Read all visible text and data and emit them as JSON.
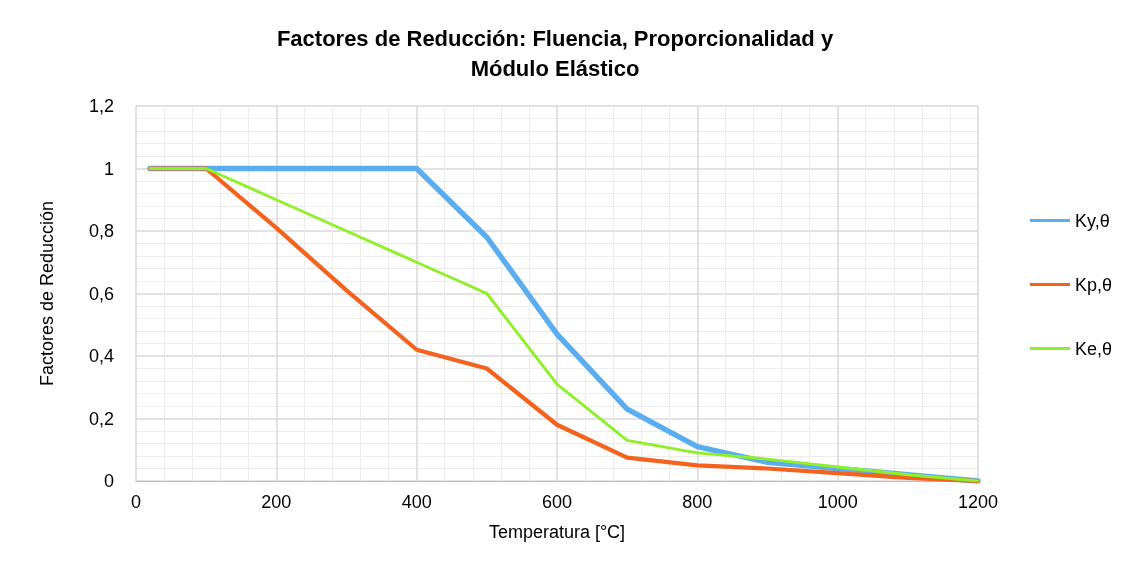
{
  "chart_data": {
    "type": "line",
    "title": "Factores de Reducción: Fluencia, Proporcionalidad y\nMódulo Elástico",
    "xlabel": "Temperatura [°C]",
    "ylabel": "Factores de Reducción",
    "x": [
      20,
      100,
      200,
      300,
      400,
      500,
      600,
      700,
      800,
      900,
      1000,
      1100,
      1200
    ],
    "series": [
      {
        "name": "Ky,θ",
        "color": "#5aaeef",
        "values": [
          1,
          1,
          1,
          1,
          1,
          0.78,
          0.47,
          0.23,
          0.11,
          0.06,
          0.04,
          0.02,
          0
        ]
      },
      {
        "name": "Kp,θ",
        "color": "#f4621e",
        "values": [
          1,
          1,
          0.81,
          0.61,
          0.42,
          0.36,
          0.18,
          0.075,
          0.05,
          0.04,
          0.025,
          0.01,
          0
        ]
      },
      {
        "name": "Ke,θ",
        "color": "#8fef2a",
        "values": [
          1,
          1,
          0.9,
          0.8,
          0.7,
          0.6,
          0.31,
          0.13,
          0.09,
          0.07,
          0.045,
          0.02,
          0
        ]
      }
    ],
    "xlim": [
      0,
      1200
    ],
    "xticks": [
      0,
      200,
      400,
      600,
      800,
      1000,
      1200
    ],
    "ylim": [
      0,
      1.2
    ],
    "yticks": [
      0,
      {
        "value": 0.2,
        "label": "0,2"
      },
      {
        "value": 0.4,
        "label": "0,4"
      },
      {
        "value": 0.6,
        "label": "0,6"
      },
      {
        "value": 0.8,
        "label": "0,8"
      },
      1,
      {
        "value": 1.2,
        "label": "1,2"
      }
    ],
    "grid": true,
    "legend": "right",
    "marker": "none",
    "line_style": "solid"
  }
}
